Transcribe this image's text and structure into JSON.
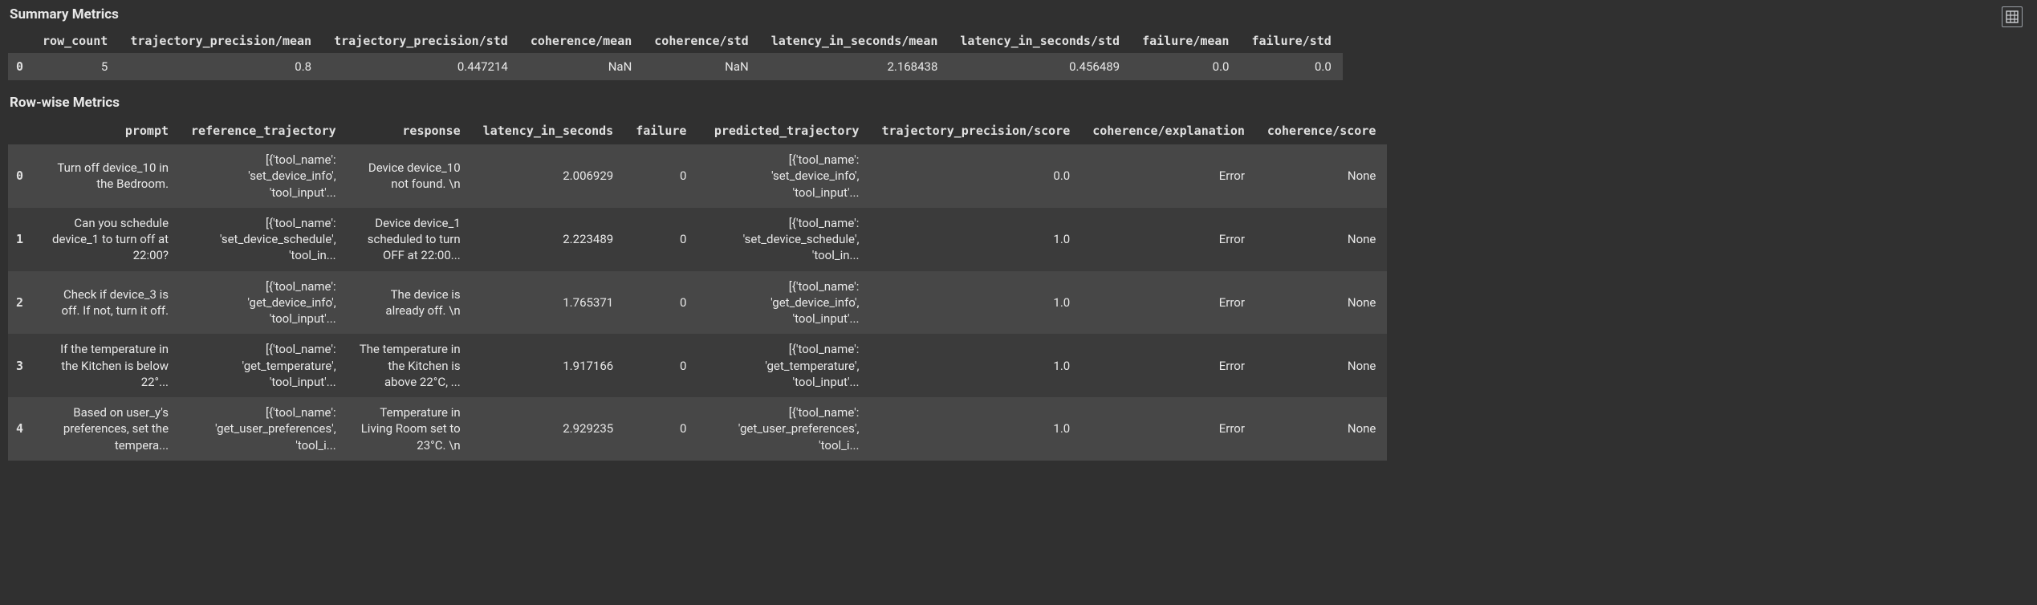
{
  "colors": {
    "background": "#303030",
    "row_even": "#474747",
    "row_odd": "#3b3b3b",
    "text": "#e8e8e8",
    "icon_border": "#9aa0a6"
  },
  "summary": {
    "title": "Summary Metrics",
    "columns": [
      "row_count",
      "trajectory_precision/mean",
      "trajectory_precision/std",
      "coherence/mean",
      "coherence/std",
      "latency_in_seconds/mean",
      "latency_in_seconds/std",
      "failure/mean",
      "failure/std"
    ],
    "rows": [
      {
        "idx": "0",
        "cells": [
          "5",
          "0.8",
          "0.447214",
          "NaN",
          "NaN",
          "2.168438",
          "0.456489",
          "0.0",
          "0.0"
        ]
      }
    ]
  },
  "rowwise": {
    "title": "Row-wise Metrics",
    "columns": [
      "prompt",
      "reference_trajectory",
      "response",
      "latency_in_seconds",
      "failure",
      "predicted_trajectory",
      "trajectory_precision/score",
      "coherence/explanation",
      "coherence/score"
    ],
    "rows": [
      {
        "idx": "0",
        "cells": [
          "Turn off device_10 in the Bedroom.",
          "[{'tool_name': 'set_device_info', 'tool_input'...",
          "Device device_10 not found. \\n",
          "2.006929",
          "0",
          "[{'tool_name': 'set_device_info', 'tool_input'...",
          "0.0",
          "Error",
          "None"
        ]
      },
      {
        "idx": "1",
        "cells": [
          "Can you schedule device_1 to turn off at 22:00?",
          "[{'tool_name': 'set_device_schedule', 'tool_in...",
          "Device device_1 scheduled to turn OFF at 22:00...",
          "2.223489",
          "0",
          "[{'tool_name': 'set_device_schedule', 'tool_in...",
          "1.0",
          "Error",
          "None"
        ]
      },
      {
        "idx": "2",
        "cells": [
          "Check if device_3 is off. If not, turn it off.",
          "[{'tool_name': 'get_device_info', 'tool_input'...",
          "The device is already off. \\n",
          "1.765371",
          "0",
          "[{'tool_name': 'get_device_info', 'tool_input'...",
          "1.0",
          "Error",
          "None"
        ]
      },
      {
        "idx": "3",
        "cells": [
          "If the temperature in the Kitchen is below 22°...",
          "[{'tool_name': 'get_temperature', 'tool_input'...",
          "The temperature in the Kitchen is above 22°C, ...",
          "1.917166",
          "0",
          "[{'tool_name': 'get_temperature', 'tool_input'...",
          "1.0",
          "Error",
          "None"
        ]
      },
      {
        "idx": "4",
        "cells": [
          "Based on user_y's preferences, set the tempera...",
          "[{'tool_name': 'get_user_preferences', 'tool_i...",
          "Temperature in Living Room set to 23°C. \\n",
          "2.929235",
          "0",
          "[{'tool_name': 'get_user_preferences', 'tool_i...",
          "1.0",
          "Error",
          "None"
        ]
      }
    ]
  },
  "icons": {
    "grid": "grid-icon"
  }
}
